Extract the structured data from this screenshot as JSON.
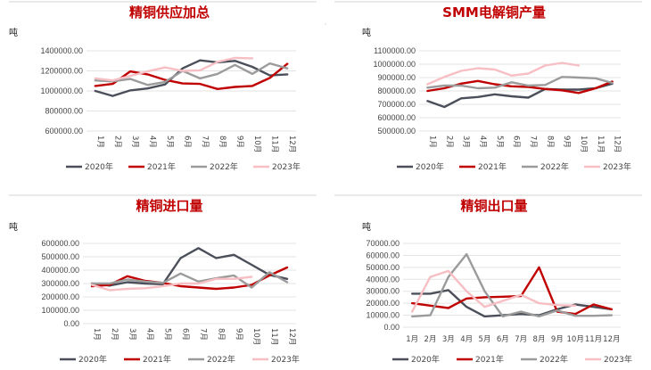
{
  "chart_data": [
    {
      "type": "line",
      "title": "精铜供应加总",
      "unit": "吨",
      "categories": [
        "1月",
        "2月",
        "3月",
        "4月",
        "5月",
        "6月",
        "7月",
        "8月",
        "9月",
        "10月",
        "11月",
        "12月"
      ],
      "ylim": [
        600000,
        1400000
      ],
      "yticks": [
        "600000.00",
        "800000.00",
        "1000000.00",
        "1200000.00",
        "1400000.00"
      ],
      "tick_values": [
        600000,
        800000,
        1000000,
        1200000,
        1400000
      ],
      "x_label_rotated": true,
      "series": [
        {
          "name": "2020年",
          "color": "#4a4f5a",
          "values": [
            1000000,
            950000,
            1005000,
            1025000,
            1065000,
            1225000,
            1305000,
            1285000,
            1300000,
            1240000,
            1155000,
            1165000
          ]
        },
        {
          "name": "2021年",
          "color": "#c00000",
          "values": [
            1050000,
            1070000,
            1195000,
            1165000,
            1110000,
            1075000,
            1070000,
            1020000,
            1040000,
            1050000,
            1130000,
            1270000
          ]
        },
        {
          "name": "2022年",
          "color": "#9b9b9b",
          "values": [
            1105000,
            1095000,
            1120000,
            1060000,
            1090000,
            1200000,
            1125000,
            1170000,
            1260000,
            1170000,
            1275000,
            1225000
          ]
        },
        {
          "name": "2023年",
          "color": "#f7bfc4",
          "values": [
            1125000,
            1105000,
            1150000,
            1195000,
            1235000,
            1200000,
            1205000,
            1290000,
            1330000,
            1325000,
            null,
            null
          ]
        }
      ]
    },
    {
      "type": "line",
      "title": "SMM电解铜产量",
      "unit": "吨",
      "categories": [
        "1月",
        "2月",
        "3月",
        "4月",
        "5月",
        "6月",
        "7月",
        "8月",
        "9月",
        "10月",
        "11月",
        "12月"
      ],
      "ylim": [
        500000,
        1100000
      ],
      "yticks": [
        "500000.00",
        "600000.00",
        "700000.00",
        "800000.00",
        "900000.00",
        "1000000.00",
        "1100000.00"
      ],
      "tick_values": [
        500000,
        600000,
        700000,
        800000,
        900000,
        1000000,
        1100000
      ],
      "x_label_rotated": true,
      "series": [
        {
          "name": "2020年",
          "color": "#4a4f5a",
          "values": [
            725000,
            680000,
            745000,
            755000,
            775000,
            760000,
            750000,
            815000,
            810000,
            810000,
            820000,
            855000
          ]
        },
        {
          "name": "2021年",
          "color": "#c00000",
          "values": [
            800000,
            820000,
            855000,
            875000,
            850000,
            835000,
            830000,
            815000,
            805000,
            785000,
            820000,
            870000
          ]
        },
        {
          "name": "2022年",
          "color": "#9b9b9b",
          "values": [
            825000,
            840000,
            840000,
            820000,
            825000,
            865000,
            840000,
            845000,
            905000,
            900000,
            895000,
            860000
          ]
        },
        {
          "name": "2023年",
          "color": "#f7bfc4",
          "values": [
            850000,
            905000,
            950000,
            970000,
            960000,
            915000,
            930000,
            990000,
            1010000,
            990000,
            null,
            null
          ]
        }
      ]
    },
    {
      "type": "line",
      "title": "精铜进口量",
      "unit": "吨",
      "categories": [
        "1月",
        "2月",
        "3月",
        "4月",
        "5月",
        "6月",
        "7月",
        "8月",
        "9月",
        "10月",
        "11月",
        "12月"
      ],
      "ylim": [
        0,
        600000
      ],
      "yticks": [
        "0.00",
        "100000.00",
        "200000.00",
        "300000.00",
        "400000.00",
        "500000.00",
        "600000.00"
      ],
      "tick_values": [
        0,
        100000,
        200000,
        300000,
        400000,
        500000,
        600000
      ],
      "x_label_rotated": true,
      "series": [
        {
          "name": "2020年",
          "color": "#4a4f5a",
          "values": [
            300000,
            285000,
            310000,
            300000,
            295000,
            490000,
            565000,
            490000,
            515000,
            440000,
            365000,
            335000
          ]
        },
        {
          "name": "2021年",
          "color": "#c00000",
          "values": [
            280000,
            290000,
            355000,
            320000,
            305000,
            280000,
            270000,
            260000,
            270000,
            290000,
            360000,
            420000
          ]
        },
        {
          "name": "2022年",
          "color": "#9b9b9b",
          "values": [
            300000,
            300000,
            330000,
            315000,
            305000,
            375000,
            315000,
            340000,
            360000,
            270000,
            385000,
            310000
          ]
        },
        {
          "name": "2023年",
          "color": "#f7bfc4",
          "values": [
            290000,
            250000,
            260000,
            265000,
            280000,
            300000,
            300000,
            335000,
            335000,
            350000,
            null,
            null
          ]
        }
      ]
    },
    {
      "type": "line",
      "title": "精铜出口量",
      "unit": "吨",
      "categories": [
        "1月",
        "2月",
        "3月",
        "4月",
        "5月",
        "6月",
        "7月",
        "8月",
        "9月",
        "10月",
        "11月",
        "12月"
      ],
      "ylim": [
        0,
        70000
      ],
      "yticks": [
        "0.00",
        "10000.00",
        "20000.00",
        "30000.00",
        "40000.00",
        "50000.00",
        "60000.00",
        "70000.00"
      ],
      "tick_values": [
        0,
        10000,
        20000,
        30000,
        40000,
        50000,
        60000,
        70000
      ],
      "x_label_rotated": false,
      "series": [
        {
          "name": "2020年",
          "color": "#4a4f5a",
          "values": [
            28000,
            28000,
            31000,
            17000,
            9000,
            10000,
            11000,
            10000,
            15000,
            19000,
            17000,
            15000
          ]
        },
        {
          "name": "2021年",
          "color": "#c00000",
          "values": [
            20000,
            18000,
            16000,
            24000,
            25000,
            25500,
            26000,
            50000,
            13000,
            11000,
            19000,
            15000
          ]
        },
        {
          "name": "2022年",
          "color": "#9b9b9b",
          "values": [
            9000,
            10000,
            42000,
            61000,
            30000,
            9000,
            13000,
            9000,
            14000,
            9500,
            9500,
            10000
          ]
        },
        {
          "name": "2023年",
          "color": "#f7bfc4",
          "values": [
            13000,
            42000,
            47000,
            30000,
            17000,
            22000,
            27000,
            20000,
            18500,
            18000,
            null,
            null
          ]
        }
      ]
    }
  ]
}
